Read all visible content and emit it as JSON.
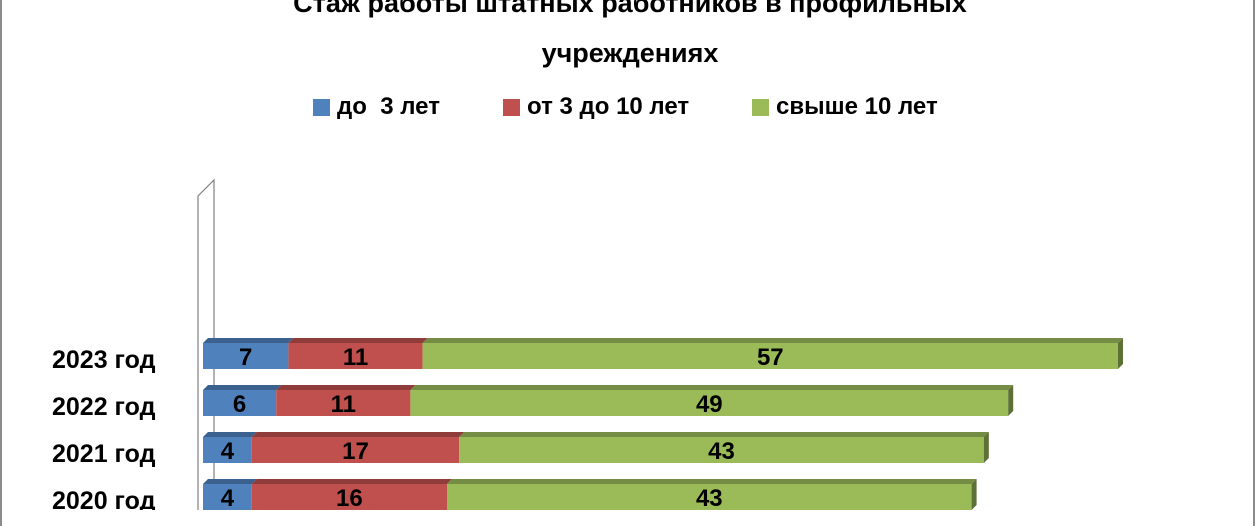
{
  "chart_data": {
    "type": "bar",
    "orientation": "horizontal",
    "stacked": true,
    "three_d": true,
    "title": "Стаж работы штатных работников в профильных учреждениях",
    "title_lines": [
      "Стаж работы штатных работников в профильных",
      "учреждениях"
    ],
    "categories": [
      "2023 год",
      "2022 год",
      "2021 год",
      "2020 год"
    ],
    "series": [
      {
        "name": "до  3 лет",
        "color": "#4f81bd",
        "values": [
          7,
          6,
          4,
          4
        ]
      },
      {
        "name": "от 3 до 10 лет",
        "color": "#c0504d",
        "values": [
          11,
          11,
          17,
          16
        ]
      },
      {
        "name": "свыше 10 лет",
        "color": "#9bbb59",
        "values": [
          57,
          49,
          43,
          43
        ]
      }
    ],
    "legend_position": "top",
    "grid": false,
    "data_labels": true
  }
}
